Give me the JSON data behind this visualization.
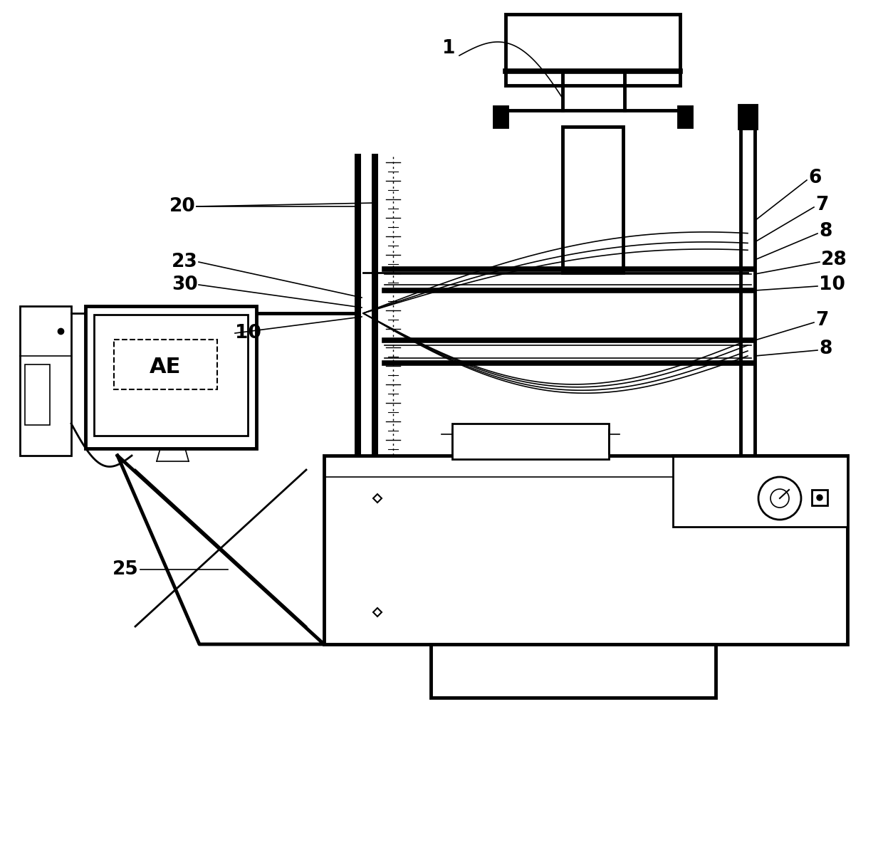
{
  "bg_color": "#ffffff",
  "lw_thin": 1.2,
  "lw_med": 2.0,
  "lw_thick": 3.5,
  "lw_vthick": 5.5
}
